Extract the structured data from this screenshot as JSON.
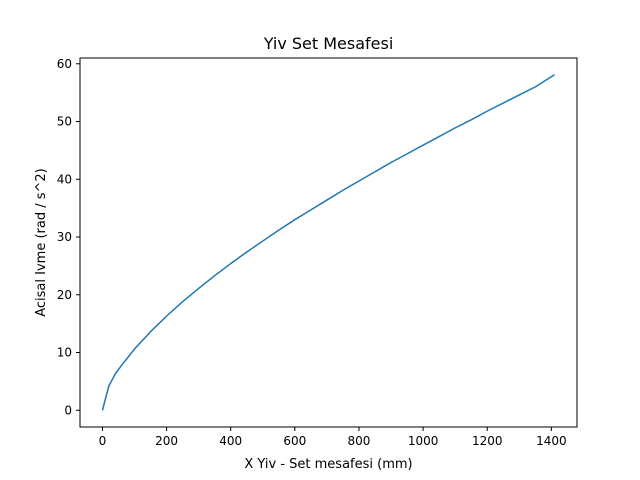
{
  "chart_data": {
    "type": "line",
    "title": "Yiv Set Mesafesi",
    "xlabel": "X Yiv - Set mesafesi (mm)",
    "ylabel": "Acisal Ivme (rad / s^2)",
    "xlim": [
      -70,
      1480
    ],
    "ylim": [
      -2.9,
      61
    ],
    "x_ticks": [
      0,
      200,
      400,
      600,
      800,
      1000,
      1200,
      1400
    ],
    "y_ticks": [
      0,
      10,
      20,
      30,
      40,
      50,
      60
    ],
    "grid": false,
    "series": [
      {
        "color": "#1f77b4",
        "x": [
          0,
          20,
          40,
          60,
          80,
          100,
          150,
          200,
          250,
          300,
          350,
          400,
          450,
          500,
          550,
          600,
          650,
          700,
          750,
          800,
          850,
          900,
          950,
          1000,
          1050,
          1100,
          1150,
          1200,
          1250,
          1300,
          1350,
          1410
        ],
        "y": [
          0,
          4.2,
          6.3,
          7.8,
          9.2,
          10.6,
          13.6,
          16.3,
          18.8,
          21.1,
          23.3,
          25.4,
          27.4,
          29.3,
          31.2,
          33.0,
          34.7,
          36.4,
          38.1,
          39.7,
          41.3,
          42.9,
          44.4,
          45.9,
          47.4,
          48.9,
          50.3,
          51.8,
          53.2,
          54.6,
          56.0,
          58.1
        ]
      }
    ]
  }
}
